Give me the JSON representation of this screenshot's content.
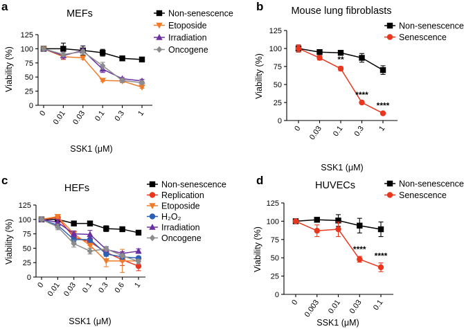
{
  "chart_data": [
    {
      "panel": "a",
      "type": "line",
      "title": "MEFs",
      "xlabel": "SSK1 (μM)",
      "ylabel": "Viability (%)",
      "ylim": [
        0,
        125
      ],
      "yticks": [
        "0",
        "25",
        "50",
        "75",
        "100",
        "125"
      ],
      "categories": [
        "0",
        "0.01",
        "0.03",
        "0.1",
        "0.3",
        "1"
      ],
      "legend": "top-right",
      "series": [
        {
          "name": "Non-senescence",
          "color": "#000000",
          "marker": "square",
          "values": [
            100,
            100,
            97,
            93,
            83,
            81
          ],
          "errors": [
            3,
            10,
            8,
            6,
            2,
            4
          ]
        },
        {
          "name": "Etoposide",
          "color": "#f07c2a",
          "marker": "triangle-down",
          "values": [
            100,
            86,
            84,
            44,
            43,
            32
          ],
          "errors": [
            3,
            5,
            3,
            2,
            3,
            2
          ]
        },
        {
          "name": "Irradiation",
          "color": "#6a2fa0",
          "marker": "triangle-up",
          "values": [
            100,
            88,
            97,
            64,
            47,
            43
          ],
          "errors": [
            3,
            6,
            3,
            6,
            2,
            3
          ]
        },
        {
          "name": "Oncogene",
          "color": "#8c8c8c",
          "marker": "diamond",
          "values": [
            100,
            90,
            95,
            70,
            44,
            40
          ],
          "errors": [
            3,
            4,
            3,
            6,
            3,
            3
          ]
        }
      ]
    },
    {
      "panel": "b",
      "type": "line",
      "title": "Mouse lung fibroblasts",
      "xlabel": "SSK1 (μM)",
      "ylabel": "Viability (%)",
      "ylim": [
        0,
        125
      ],
      "yticks": [
        "0",
        "25",
        "50",
        "75",
        "100",
        "125"
      ],
      "categories": [
        "0",
        "0.03",
        "0.1",
        "0.3",
        "1"
      ],
      "legend": "top-right",
      "series": [
        {
          "name": "Non-senescence",
          "color": "#000000",
          "marker": "square",
          "values": [
            100,
            95,
            94,
            87,
            70
          ],
          "errors": [
            5,
            3,
            1,
            6,
            6
          ]
        },
        {
          "name": "Senescence",
          "color": "#e8361f",
          "marker": "circle",
          "values": [
            100,
            87,
            72,
            25,
            10
          ],
          "errors": [
            5,
            3,
            3,
            1,
            1
          ]
        }
      ],
      "annotations": [
        {
          "category": "0.1",
          "text": "**"
        },
        {
          "category": "0.3",
          "text": "****"
        },
        {
          "category": "1",
          "text": "****"
        }
      ]
    },
    {
      "panel": "c",
      "type": "line",
      "title": "HEFs",
      "xlabel": "SSK1 (μM)",
      "ylabel": "Viability (%)",
      "ylim": [
        0,
        125
      ],
      "yticks": [
        "0",
        "25",
        "50",
        "75",
        "100",
        "125"
      ],
      "categories": [
        "0",
        "0.01",
        "0.03",
        "0.1",
        "0.3",
        "0.6",
        "1"
      ],
      "legend": "top-right",
      "series": [
        {
          "name": "Non-senescence",
          "color": "#000000",
          "marker": "square",
          "values": [
            100,
            100,
            93,
            93,
            84,
            83,
            77
          ],
          "errors": [
            3,
            4,
            2,
            3,
            5,
            2,
            4
          ]
        },
        {
          "name": "Replication",
          "color": "#e8361f",
          "marker": "circle",
          "values": [
            100,
            103,
            69,
            61,
            43,
            30,
            19
          ],
          "errors": [
            3,
            3,
            6,
            6,
            4,
            10,
            8
          ]
        },
        {
          "name": "Etoposide",
          "color": "#f07c2a",
          "marker": "triangle-down",
          "values": [
            100,
            105,
            75,
            55,
            28,
            28,
            28
          ],
          "errors": [
            3,
            3,
            5,
            5,
            10,
            20,
            5
          ]
        },
        {
          "name": "H₂O₂",
          "color": "#2b5fb5",
          "marker": "circle",
          "values": [
            100,
            90,
            65,
            65,
            40,
            35,
            33
          ],
          "errors": [
            3,
            5,
            5,
            5,
            4,
            4,
            3
          ]
        },
        {
          "name": "Irradiation",
          "color": "#6a2fa0",
          "marker": "triangle-up",
          "values": [
            100,
            95,
            75,
            74,
            48,
            41,
            45
          ],
          "errors": [
            3,
            5,
            5,
            7,
            4,
            3,
            4
          ]
        },
        {
          "name": "Oncogene",
          "color": "#8c8c8c",
          "marker": "diamond",
          "values": [
            100,
            87,
            58,
            45,
            49,
            37,
            27
          ],
          "errors": [
            3,
            5,
            6,
            5,
            4,
            3,
            4
          ]
        }
      ]
    },
    {
      "panel": "d",
      "type": "line",
      "title": "HUVECs",
      "xlabel": "SSK1 (μM)",
      "ylabel": "Viability (%)",
      "ylim": [
        0,
        125
      ],
      "yticks": [
        "0",
        "25",
        "50",
        "75",
        "100",
        "125"
      ],
      "categories": [
        "0",
        "0.003",
        "0.01",
        "0.03",
        "0.1"
      ],
      "legend": "top-right",
      "series": [
        {
          "name": "Non-senescence",
          "color": "#000000",
          "marker": "square",
          "values": [
            100,
            102,
            101,
            94,
            89
          ],
          "errors": [
            2,
            2,
            8,
            10,
            10
          ]
        },
        {
          "name": "Senescence",
          "color": "#e8361f",
          "marker": "circle",
          "values": [
            100,
            87,
            89,
            48,
            37
          ],
          "errors": [
            2,
            8,
            10,
            4,
            6
          ]
        }
      ],
      "annotations": [
        {
          "category": "0.03",
          "text": "****"
        },
        {
          "category": "0.1",
          "text": "****"
        }
      ]
    }
  ]
}
